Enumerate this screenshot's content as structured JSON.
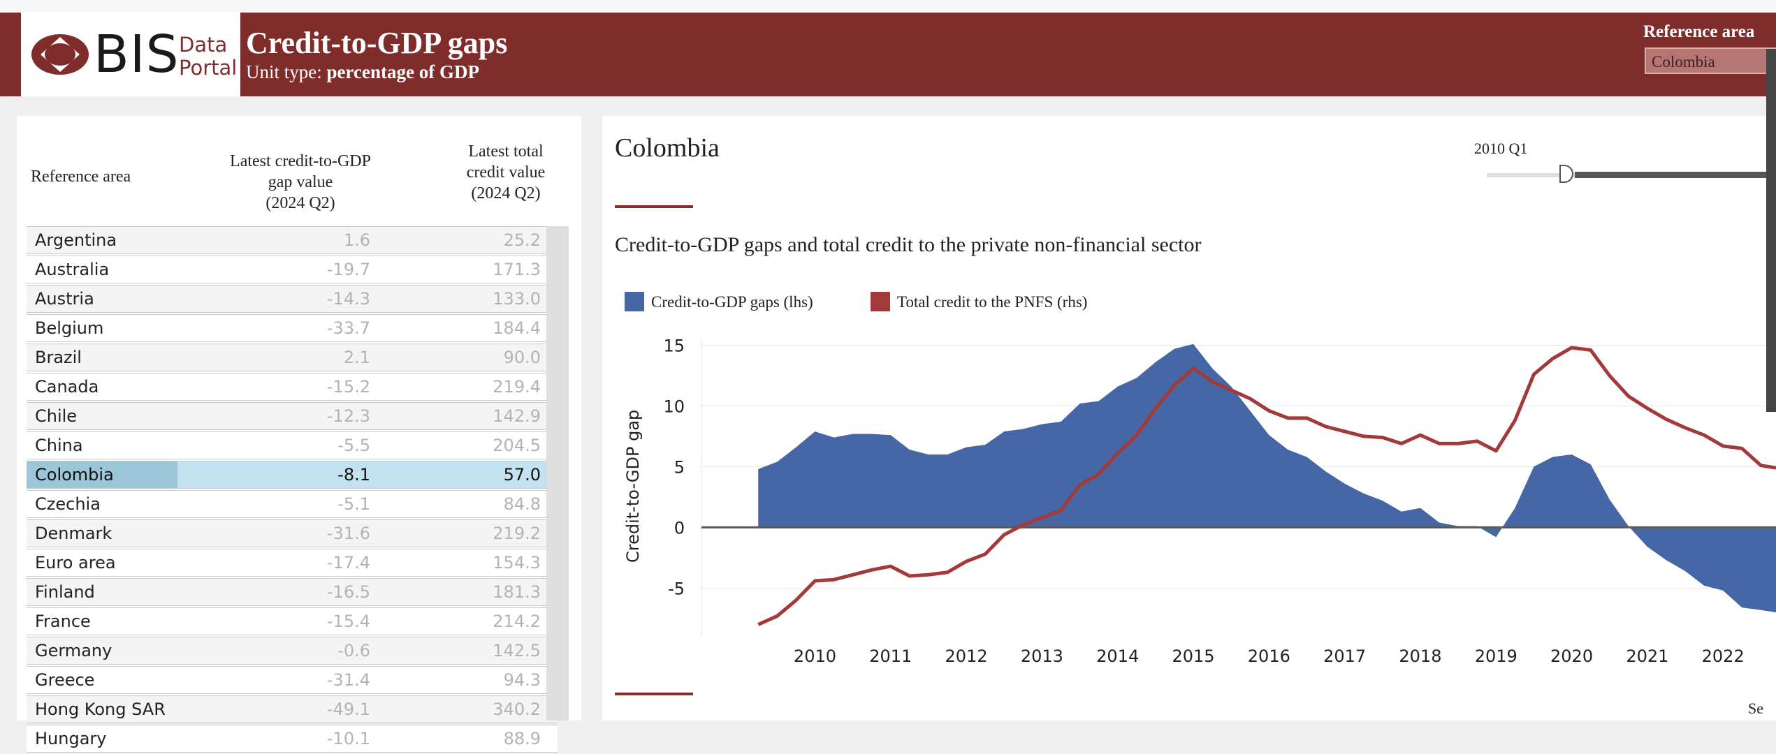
{
  "header": {
    "logo_text": "BIS",
    "logo_sub_line1": "Data",
    "logo_sub_line2": "Portal",
    "title": "Credit-to-GDP gaps",
    "unit_prefix": "Unit type: ",
    "unit_value": "percentage of GDP",
    "reference_area_label": "Reference area",
    "reference_area_value": "Colombia",
    "brand_color": "#7e2d2b"
  },
  "table": {
    "headers": {
      "area": "Reference area",
      "gap_l1": "Latest credit-to-GDP",
      "gap_l2": "gap value",
      "gap_l3": "(2024 Q2)",
      "credit_l1": "Latest total",
      "credit_l2": "credit value",
      "credit_l3": "(2024 Q2)"
    },
    "rows": [
      {
        "area": "Argentina",
        "gap": "1.6",
        "credit": "25.2"
      },
      {
        "area": "Australia",
        "gap": "-19.7",
        "credit": "171.3"
      },
      {
        "area": "Austria",
        "gap": "-14.3",
        "credit": "133.0"
      },
      {
        "area": "Belgium",
        "gap": "-33.7",
        "credit": "184.4"
      },
      {
        "area": "Brazil",
        "gap": "2.1",
        "credit": "90.0"
      },
      {
        "area": "Canada",
        "gap": "-15.2",
        "credit": "219.4"
      },
      {
        "area": "Chile",
        "gap": "-12.3",
        "credit": "142.9"
      },
      {
        "area": "China",
        "gap": "-5.5",
        "credit": "204.5"
      },
      {
        "area": "Colombia",
        "gap": "-8.1",
        "credit": "57.0"
      },
      {
        "area": "Czechia",
        "gap": "-5.1",
        "credit": "84.8"
      },
      {
        "area": "Denmark",
        "gap": "-31.6",
        "credit": "219.2"
      },
      {
        "area": "Euro area",
        "gap": "-17.4",
        "credit": "154.3"
      },
      {
        "area": "Finland",
        "gap": "-16.5",
        "credit": "181.3"
      },
      {
        "area": "France",
        "gap": "-15.4",
        "credit": "214.2"
      },
      {
        "area": "Germany",
        "gap": "-0.6",
        "credit": "142.5"
      },
      {
        "area": "Greece",
        "gap": "-31.4",
        "credit": "94.3"
      },
      {
        "area": "Hong Kong SAR",
        "gap": "-49.1",
        "credit": "340.2"
      },
      {
        "area": "Hungary",
        "gap": "-10.1",
        "credit": "88.9"
      }
    ],
    "selected_index": 8,
    "selected_color": "#c3e1ee"
  },
  "detail": {
    "country": "Colombia",
    "slider_label": "2010 Q1",
    "slider_position": 0.3,
    "partial_text": "Se"
  },
  "chart_data": {
    "type": "area",
    "title": "Credit-to-GDP gaps and total credit to the private non-financial sector",
    "ylabel": "Credit-to-GDP gap",
    "ylim": [
      -9,
      15.6
    ],
    "xlim": [
      2009.0,
      2023.2
    ],
    "yticks": [
      15,
      10,
      5,
      0,
      -5
    ],
    "xticks": [
      2010,
      2011,
      2012,
      2013,
      2014,
      2015,
      2016,
      2017,
      2018,
      2019,
      2020,
      2021,
      2022
    ],
    "grid": true,
    "legend_position": "top-left",
    "series": [
      {
        "name": "Credit-to-GDP gaps (lhs)",
        "type": "area",
        "color": "#4667a6",
        "x": [
          2009.75,
          2010.0,
          2010.25,
          2010.5,
          2010.75,
          2011.0,
          2011.25,
          2011.5,
          2011.75,
          2012.0,
          2012.25,
          2012.5,
          2012.75,
          2013.0,
          2013.25,
          2013.5,
          2013.75,
          2014.0,
          2014.25,
          2014.5,
          2014.75,
          2015.0,
          2015.25,
          2015.5,
          2015.75,
          2016.0,
          2016.25,
          2016.5,
          2016.75,
          2017.0,
          2017.25,
          2017.5,
          2017.75,
          2018.0,
          2018.25,
          2018.5,
          2018.75,
          2019.0,
          2019.25,
          2019.5,
          2019.75,
          2020.0,
          2020.25,
          2020.5,
          2020.75,
          2021.0,
          2021.25,
          2021.5,
          2021.75,
          2022.0,
          2022.25,
          2022.5,
          2022.75,
          2023.0,
          2023.2
        ],
        "values": [
          4.8,
          5.4,
          6.6,
          7.9,
          7.4,
          7.7,
          7.7,
          7.6,
          6.4,
          6.0,
          6.0,
          6.6,
          6.8,
          7.9,
          8.1,
          8.5,
          8.7,
          10.2,
          10.4,
          11.6,
          12.3,
          13.6,
          14.7,
          15.1,
          13.1,
          11.6,
          9.6,
          7.6,
          6.4,
          5.8,
          4.6,
          3.6,
          2.8,
          2.2,
          1.3,
          1.6,
          0.4,
          0.1,
          0.1,
          -0.8,
          1.6,
          5.0,
          5.8,
          6.0,
          5.2,
          2.3,
          0.1,
          -1.6,
          -2.7,
          -3.6,
          -4.8,
          -5.2,
          -6.6,
          -6.8,
          -7.0
        ]
      },
      {
        "name": "Total credit to the PNFS (rhs)",
        "type": "line",
        "color": "#a4393a",
        "x": [
          2009.75,
          2010.0,
          2010.25,
          2010.5,
          2010.75,
          2011.0,
          2011.25,
          2011.5,
          2011.75,
          2012.0,
          2012.25,
          2012.5,
          2012.75,
          2013.0,
          2013.25,
          2013.5,
          2013.75,
          2014.0,
          2014.25,
          2014.5,
          2014.75,
          2015.0,
          2015.25,
          2015.5,
          2015.75,
          2016.0,
          2016.25,
          2016.5,
          2016.75,
          2017.0,
          2017.25,
          2017.5,
          2017.75,
          2018.0,
          2018.25,
          2018.5,
          2018.75,
          2019.0,
          2019.25,
          2019.5,
          2019.75,
          2020.0,
          2020.25,
          2020.5,
          2020.75,
          2021.0,
          2021.25,
          2021.5,
          2021.75,
          2022.0,
          2022.25,
          2022.5,
          2022.75,
          2023.0,
          2023.2
        ],
        "values": [
          -8.0,
          -7.3,
          -6.0,
          -4.4,
          -4.3,
          -3.9,
          -3.5,
          -3.2,
          -4.0,
          -3.9,
          -3.7,
          -2.8,
          -2.2,
          -0.6,
          0.2,
          0.8,
          1.4,
          3.5,
          4.4,
          6.1,
          7.6,
          9.8,
          11.7,
          13.1,
          12.0,
          11.3,
          10.6,
          9.6,
          9.0,
          9.0,
          8.3,
          7.9,
          7.5,
          7.4,
          6.9,
          7.6,
          6.9,
          6.9,
          7.1,
          6.3,
          8.8,
          12.6,
          13.9,
          14.8,
          14.6,
          12.5,
          10.8,
          9.8,
          8.9,
          8.2,
          7.6,
          6.7,
          6.5,
          5.1,
          4.9
        ]
      }
    ]
  }
}
